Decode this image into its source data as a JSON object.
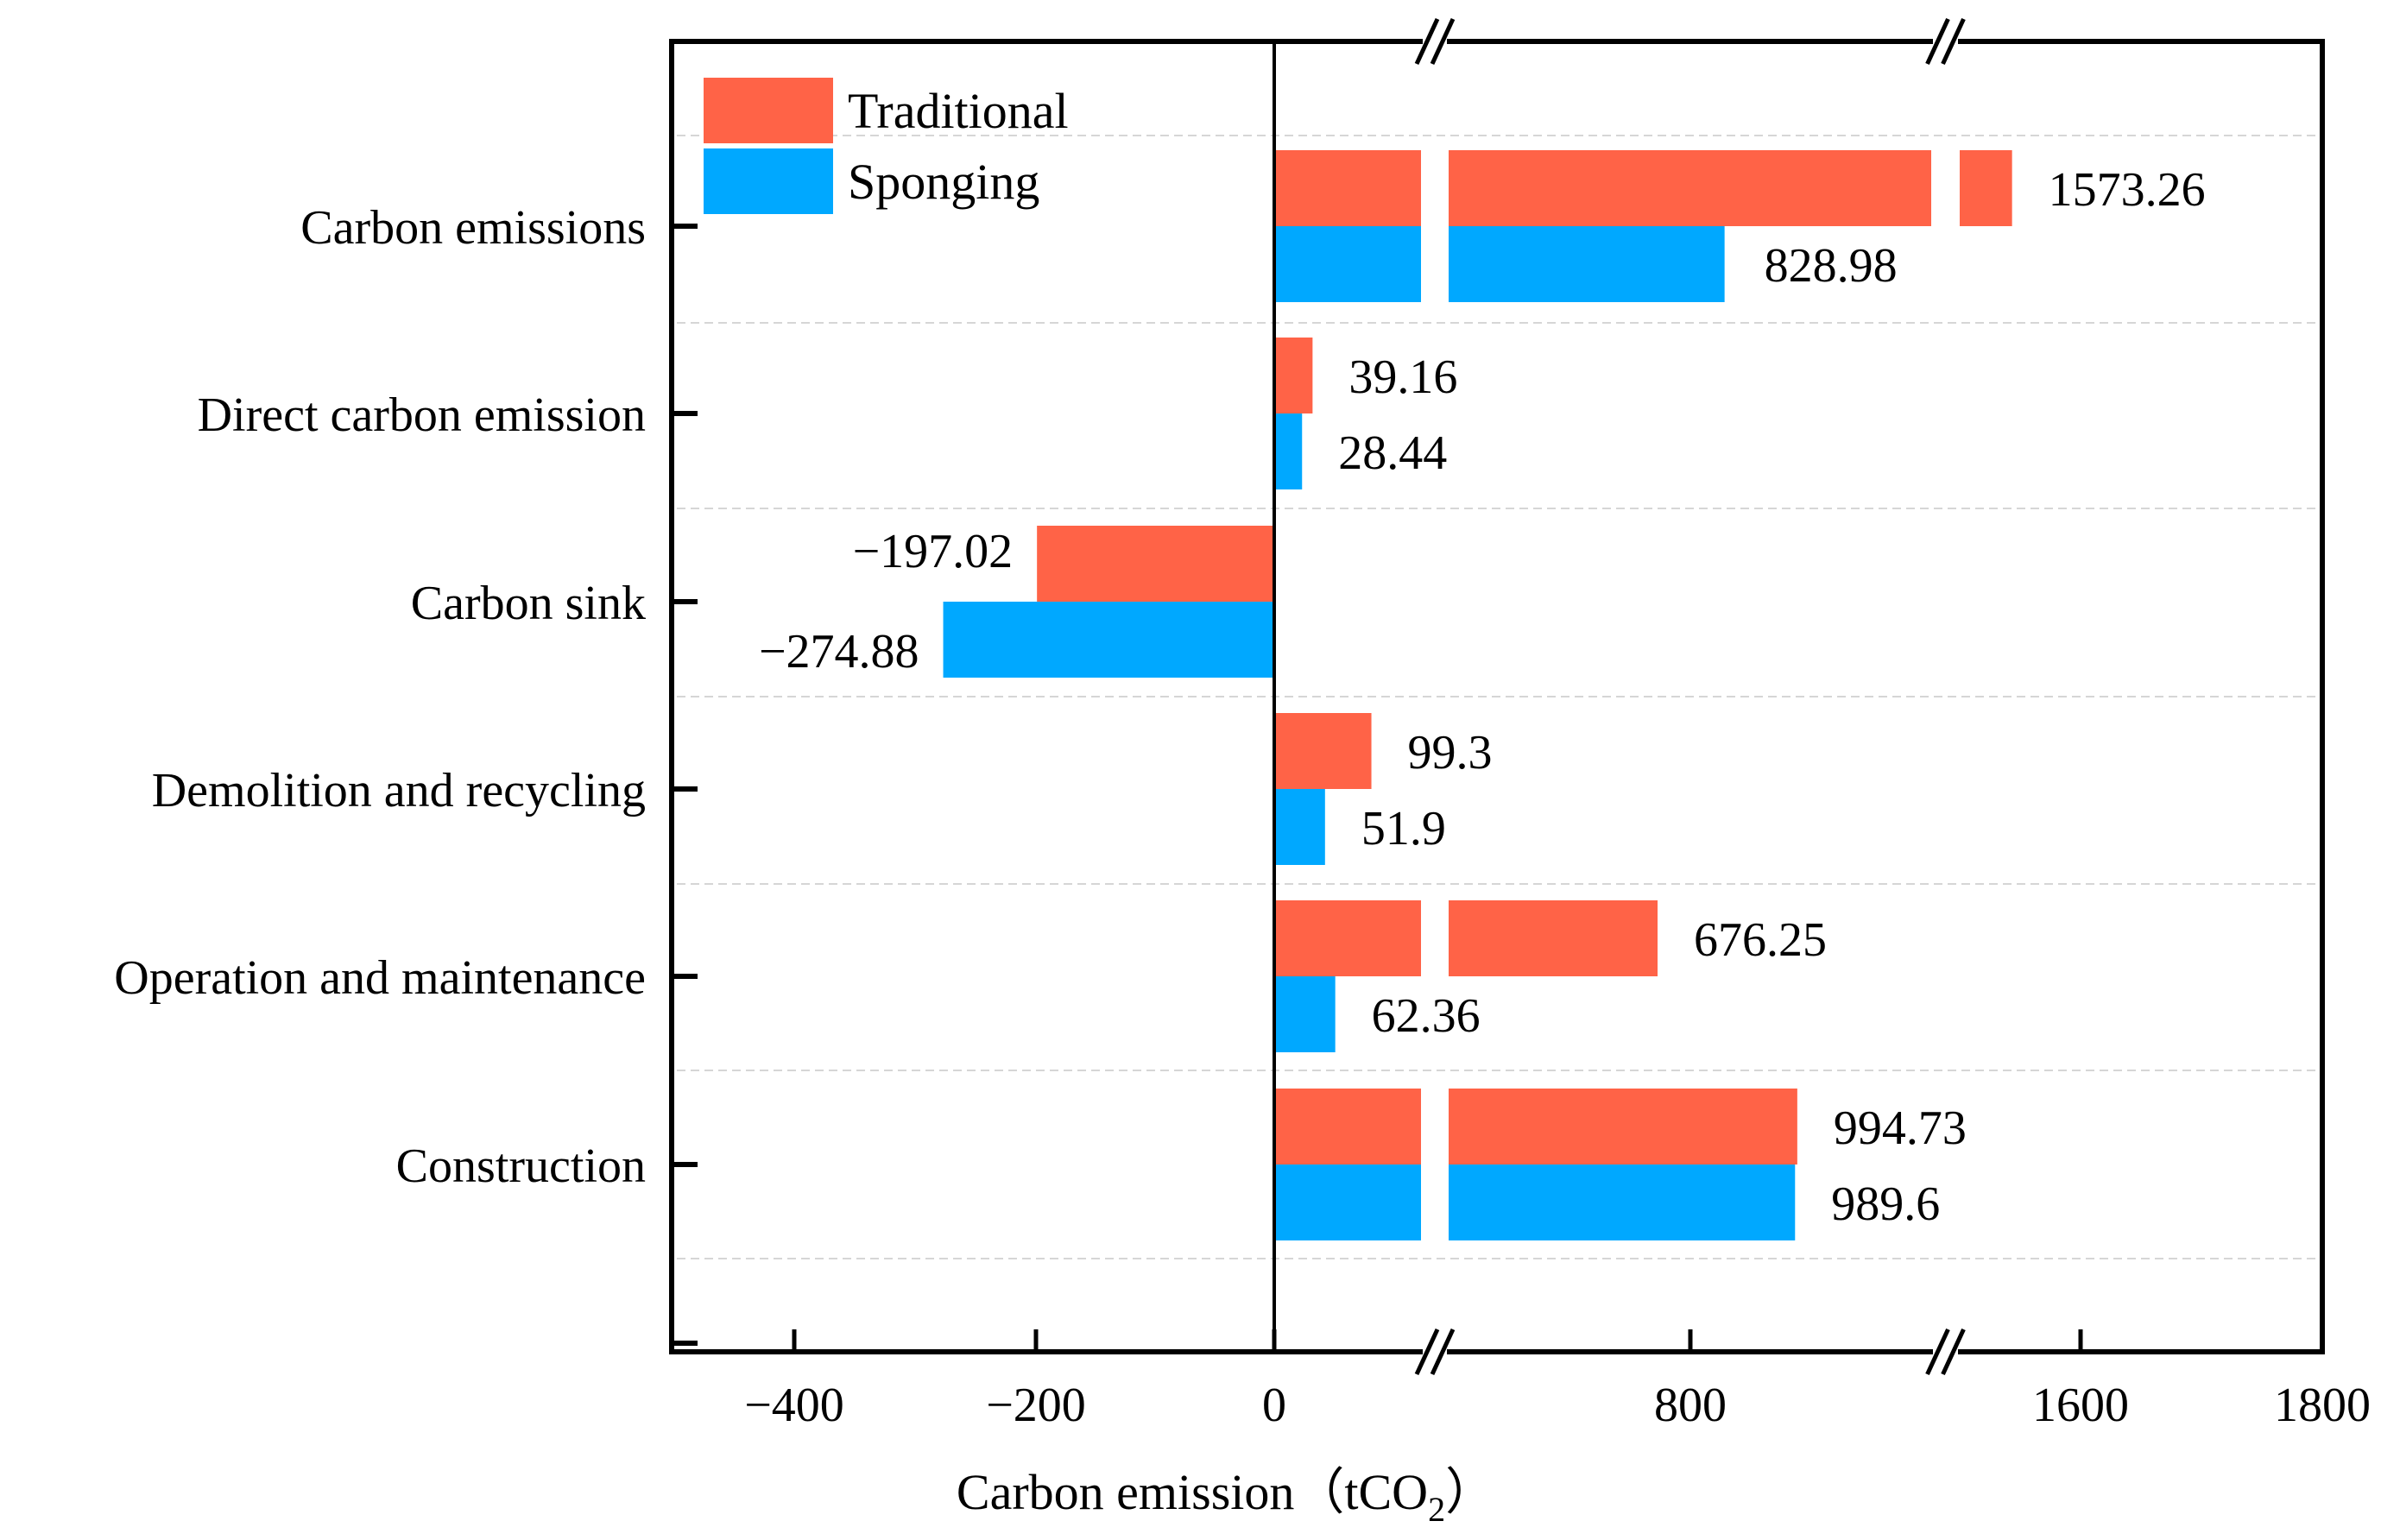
{
  "chart_data": {
    "type": "bar",
    "orientation": "horizontal",
    "categories": [
      "Carbon emissions",
      "Direct carbon emission",
      "Carbon sink",
      "Demolition and recycling",
      "Operation and maintenance ",
      "Construction"
    ],
    "series": [
      {
        "name": "Traditional",
        "color": "#ff6347",
        "values": [
          1573.26,
          39.16,
          -197.02,
          99.3,
          676.25,
          994.73
        ]
      },
      {
        "name": "Sponging",
        "color": "#00a8ff",
        "values": [
          828.98,
          28.44,
          -274.88,
          51.9,
          62.36,
          989.6
        ]
      }
    ],
    "value_labels": {
      "Traditional": [
        "1573.26",
        "39.16",
        "−197.02",
        "99.3",
        "676.25",
        "994.73"
      ],
      "Sponging": [
        "828.98",
        "28.44",
        "−274.88",
        "51.9",
        "62.36",
        "989.6"
      ]
    },
    "x_ticks": [
      "−400",
      "−200",
      "0",
      "800",
      "1600",
      "1800"
    ],
    "xlabel_main": "Carbon emission（tCO",
    "xlabel_sub": "2",
    "xlabel_end": "）",
    "axis_breaks": [
      [
        120,
        140
      ],
      [
        1320,
        1350
      ]
    ],
    "legend_position": "top-left"
  }
}
